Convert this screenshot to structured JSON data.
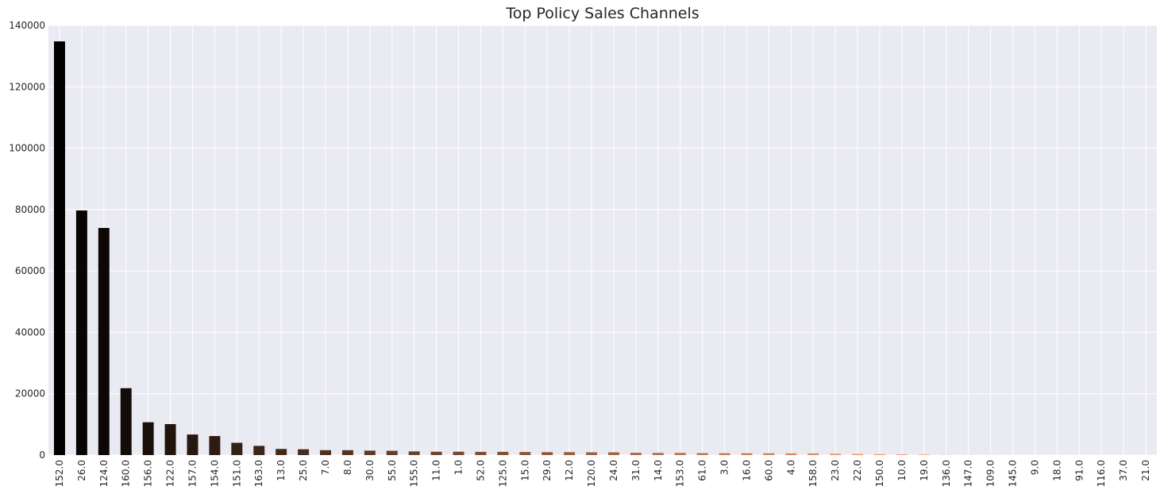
{
  "chart_data": {
    "type": "bar",
    "title": "Top Policy Sales Channels",
    "xlabel": "",
    "ylabel": "",
    "ylim": [
      0,
      140000
    ],
    "yticks": [
      "0",
      "20000",
      "40000",
      "60000",
      "80000",
      "100000",
      "120000",
      "140000"
    ],
    "grid": true,
    "legend": "none",
    "background_color": "#eaeaf2",
    "grid_color": "#ffffff",
    "colormap": "copper",
    "categories": [
      "152.0",
      "26.0",
      "124.0",
      "160.0",
      "156.0",
      "122.0",
      "157.0",
      "154.0",
      "151.0",
      "163.0",
      "13.0",
      "25.0",
      "7.0",
      "8.0",
      "30.0",
      "55.0",
      "155.0",
      "11.0",
      "1.0",
      "52.0",
      "125.0",
      "15.0",
      "29.0",
      "12.0",
      "120.0",
      "24.0",
      "31.0",
      "14.0",
      "153.0",
      "61.0",
      "3.0",
      "16.0",
      "60.0",
      "4.0",
      "158.0",
      "23.0",
      "22.0",
      "150.0",
      "10.0",
      "19.0",
      "136.0",
      "147.0",
      "109.0",
      "145.0",
      "9.0",
      "18.0",
      "91.0",
      "116.0",
      "37.0",
      "21.0"
    ],
    "values": [
      134800,
      79700,
      74000,
      21800,
      10700,
      10100,
      6700,
      6200,
      4000,
      3000,
      2000,
      1900,
      1600,
      1600,
      1450,
      1400,
      1200,
      1100,
      1100,
      1050,
      1050,
      1000,
      950,
      950,
      900,
      900,
      750,
      700,
      700,
      650,
      600,
      600,
      600,
      550,
      550,
      400,
      350,
      300,
      250,
      200,
      50,
      30,
      25,
      15,
      10,
      8,
      6,
      4,
      2,
      1
    ]
  }
}
